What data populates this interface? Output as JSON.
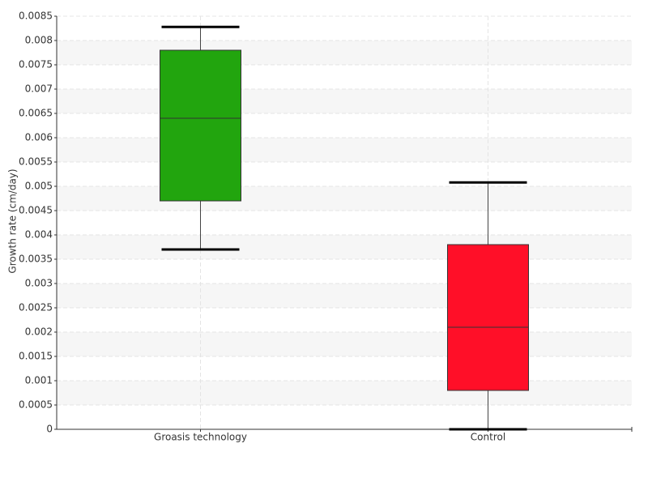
{
  "chart_data": {
    "type": "box",
    "y_label": "Growth rate (cm/day)",
    "categories": [
      "Groasis technology",
      "Control"
    ],
    "boxes": [
      {
        "whisker_low": 0.0037,
        "q1": 0.0047,
        "median": 0.0064,
        "q3": 0.0078,
        "whisker_high": 0.00828,
        "color": "#22a50e"
      },
      {
        "whisker_low": 0.0,
        "q1": 0.0008,
        "median": 0.0021,
        "q3": 0.0038,
        "whisker_high": 0.00508,
        "color": "#ff0f28"
      }
    ],
    "ylim": [
      0,
      0.0085
    ],
    "yticks": [
      0,
      0.0005,
      0.001,
      0.0015,
      0.002,
      0.0025,
      0.003,
      0.0035,
      0.004,
      0.0045,
      0.005,
      0.0055,
      0.006,
      0.0065,
      0.007,
      0.0075,
      0.008,
      0.0085
    ],
    "grid": true
  }
}
